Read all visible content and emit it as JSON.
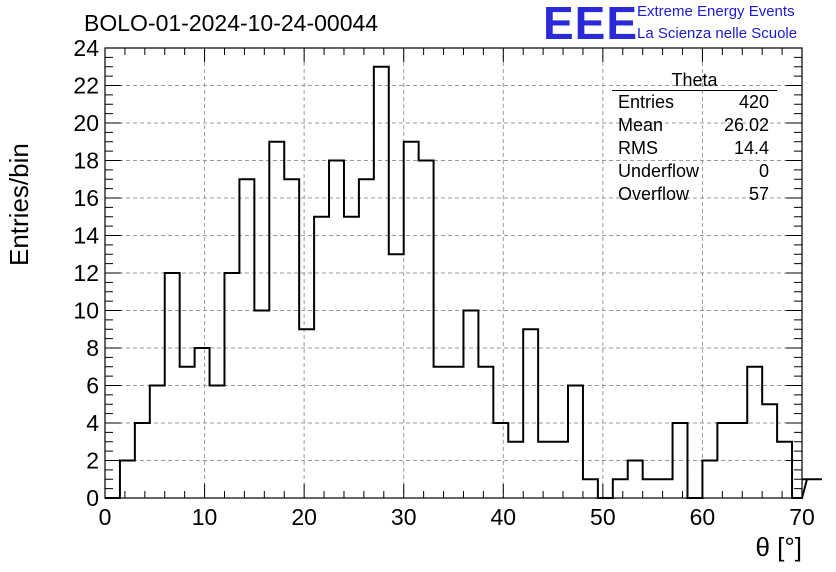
{
  "header": {
    "run_title": "BOLO-01-2024-10-24-00044"
  },
  "logo": {
    "mark": "EEE",
    "line1": "Extreme Energy Events",
    "line2": "La Scienza nelle Scuole",
    "color": "#2222dd"
  },
  "stats": {
    "name": "Theta",
    "rows": [
      {
        "label": "Entries",
        "value": "420"
      },
      {
        "label": "Mean",
        "value": "26.02"
      },
      {
        "label": "RMS",
        "value": "14.4"
      },
      {
        "label": "Underflow",
        "value": "0"
      },
      {
        "label": "Overflow",
        "value": "57"
      }
    ]
  },
  "chart_data": {
    "type": "bar",
    "style": "step-histogram",
    "title": "BOLO-01-2024-10-24-00044",
    "xlabel": "θ [°]",
    "ylabel": "Entries/bin",
    "xlim": [
      0,
      70
    ],
    "ylim": [
      0,
      24
    ],
    "bin_width": 1.5,
    "x_start": 0,
    "xticks": [
      0,
      10,
      20,
      30,
      40,
      50,
      60,
      70
    ],
    "yticks": [
      0,
      2,
      4,
      6,
      8,
      10,
      12,
      14,
      16,
      18,
      20,
      22,
      24
    ],
    "grid": true,
    "values": [
      0,
      2,
      4,
      6,
      12,
      7,
      8,
      6,
      12,
      17,
      10,
      19,
      17,
      9,
      15,
      18,
      15,
      17,
      23,
      13,
      19,
      18,
      7,
      7,
      10,
      7,
      4,
      3,
      9,
      3,
      3,
      6,
      1,
      0,
      1,
      2,
      1,
      1,
      4,
      0,
      2,
      4,
      4,
      7,
      5,
      3,
      0,
      1,
      1
    ]
  }
}
